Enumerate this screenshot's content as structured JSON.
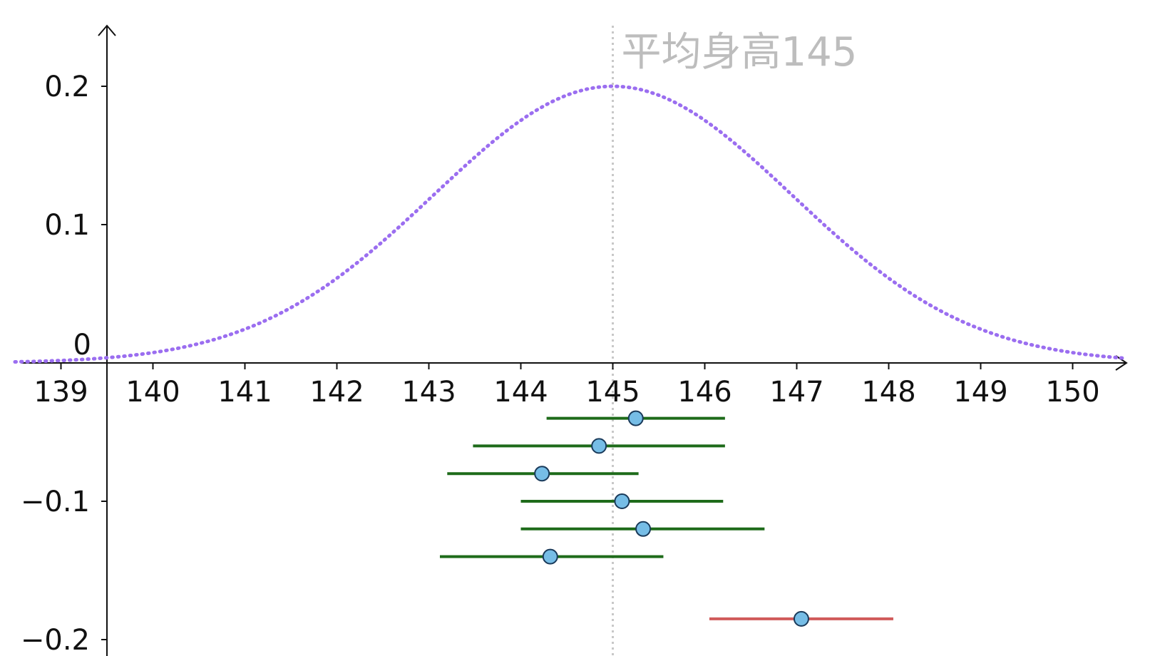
{
  "chart_data": {
    "type": "scatter",
    "title": "",
    "xlabel": "",
    "ylabel": "",
    "xlim": [
      138.5,
      150.55
    ],
    "ylim": [
      -0.21,
      0.245
    ],
    "x_ticks": [
      139,
      140,
      141,
      142,
      143,
      144,
      145,
      146,
      147,
      148,
      149,
      150
    ],
    "x_tick_labels": [
      "139",
      "140",
      "141",
      "142",
      "143",
      "144",
      "145",
      "146",
      "147",
      "148",
      "149",
      "150"
    ],
    "y_ticks": [
      0.2,
      0.1,
      0,
      -0.1,
      -0.2
    ],
    "y_tick_labels": [
      "0.2",
      "0.1",
      "0",
      "−0.1",
      "−0.2"
    ],
    "grid": false,
    "mean_line": {
      "x": 145,
      "label": "平均身高145",
      "color": "#c8c8c8"
    },
    "curve": {
      "kind": "normal-density",
      "mean": 145,
      "peak_density": 0.2,
      "sd": 1.95,
      "style": "dotted",
      "color": "#9b6ef0"
    },
    "intervals": [
      {
        "center": 145.25,
        "low": 144.28,
        "high": 146.22,
        "y": -0.04,
        "contains_mean": true
      },
      {
        "center": 144.85,
        "low": 143.48,
        "high": 146.22,
        "y": -0.06,
        "contains_mean": true
      },
      {
        "center": 144.23,
        "low": 143.2,
        "high": 145.28,
        "y": -0.08,
        "contains_mean": true
      },
      {
        "center": 145.1,
        "low": 144.0,
        "high": 146.2,
        "y": -0.1,
        "contains_mean": true
      },
      {
        "center": 145.33,
        "low": 144.0,
        "high": 146.65,
        "y": -0.12,
        "contains_mean": true
      },
      {
        "center": 144.32,
        "low": 143.12,
        "high": 145.55,
        "y": -0.14,
        "contains_mean": true
      },
      {
        "center": 147.05,
        "low": 146.05,
        "high": 148.05,
        "y": -0.185,
        "contains_mean": false
      }
    ],
    "colors": {
      "interval_contains": "#1e6b1a",
      "interval_misses": "#d05a5a",
      "point_fill": "#76bde6",
      "point_stroke": "#1a3a5a",
      "axis": "#111111"
    }
  }
}
